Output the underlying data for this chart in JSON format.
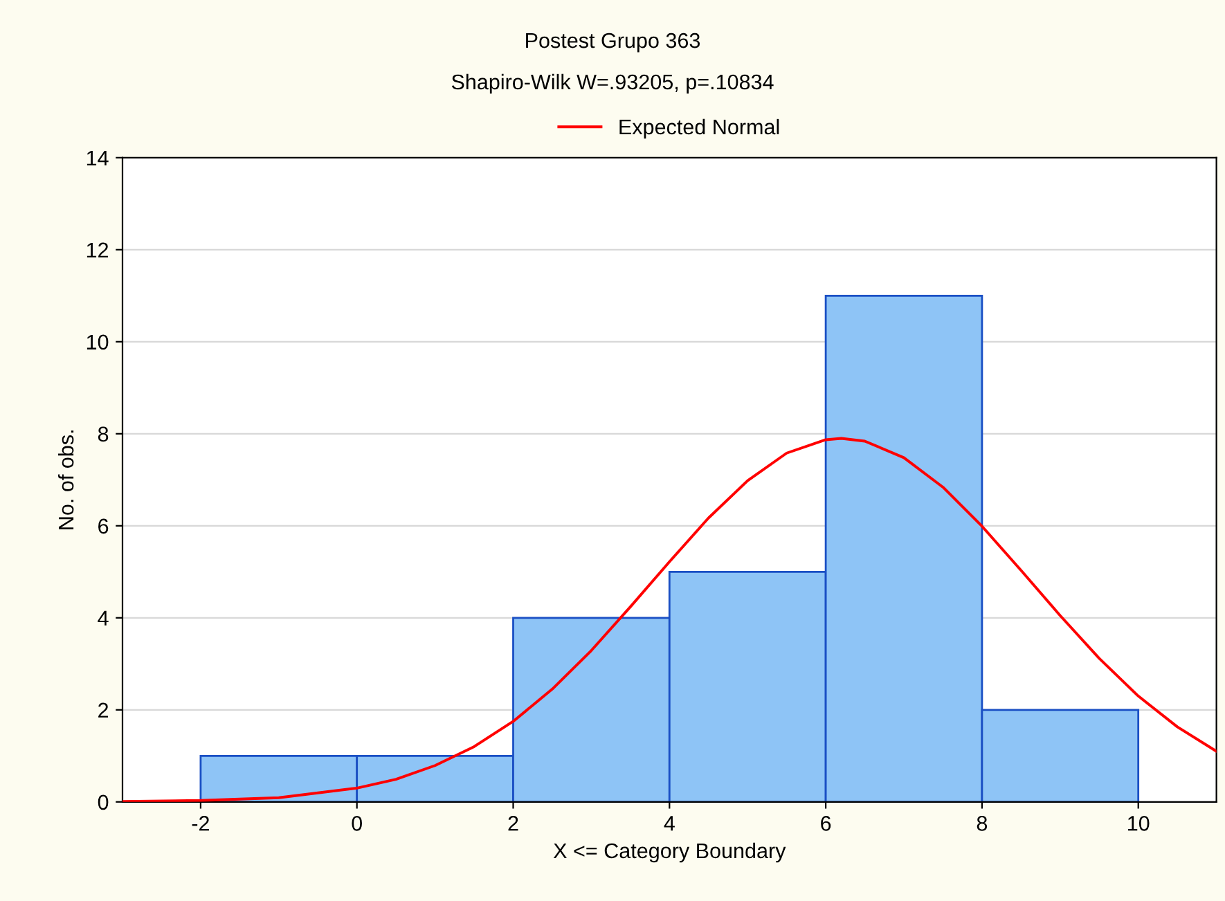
{
  "chart_data": {
    "type": "histogram",
    "title": "Postest Grupo 363",
    "subtitle": "Shapiro-Wilk W=.93205, p=.10834",
    "xlabel": "X <= Category Boundary",
    "ylabel": "No. of obs.",
    "bins": [
      -2,
      0,
      2,
      4,
      6,
      8,
      10
    ],
    "values": [
      1,
      1,
      4,
      5,
      11,
      2
    ],
    "color": "#8ec4f6",
    "series": [
      {
        "type": "line",
        "name": "Expected Normal",
        "color": "#ff0000",
        "x": [
          -3,
          -2,
          -1,
          0,
          0.5,
          1,
          1.5,
          2,
          2.5,
          3,
          3.5,
          4,
          4.5,
          5,
          5.5,
          6,
          6.2,
          6.5,
          7,
          7.5,
          8,
          8.5,
          9,
          9.5,
          10,
          10.5,
          11
        ],
        "values": [
          0.01,
          0.03,
          0.09,
          0.3,
          0.49,
          0.79,
          1.2,
          1.75,
          2.45,
          3.29,
          4.24,
          5.22,
          6.17,
          6.98,
          7.58,
          7.87,
          7.9,
          7.84,
          7.48,
          6.84,
          5.99,
          5.03,
          4.05,
          3.12,
          2.3,
          1.63,
          1.1
        ]
      }
    ],
    "xlim": [
      -3,
      11
    ],
    "xticks": [
      -2,
      0,
      2,
      4,
      6,
      8,
      10
    ],
    "ylim": [
      0,
      14
    ],
    "yticks": [
      0,
      2,
      4,
      6,
      8,
      10,
      12,
      14
    ],
    "grid": "y",
    "legend": "top"
  }
}
